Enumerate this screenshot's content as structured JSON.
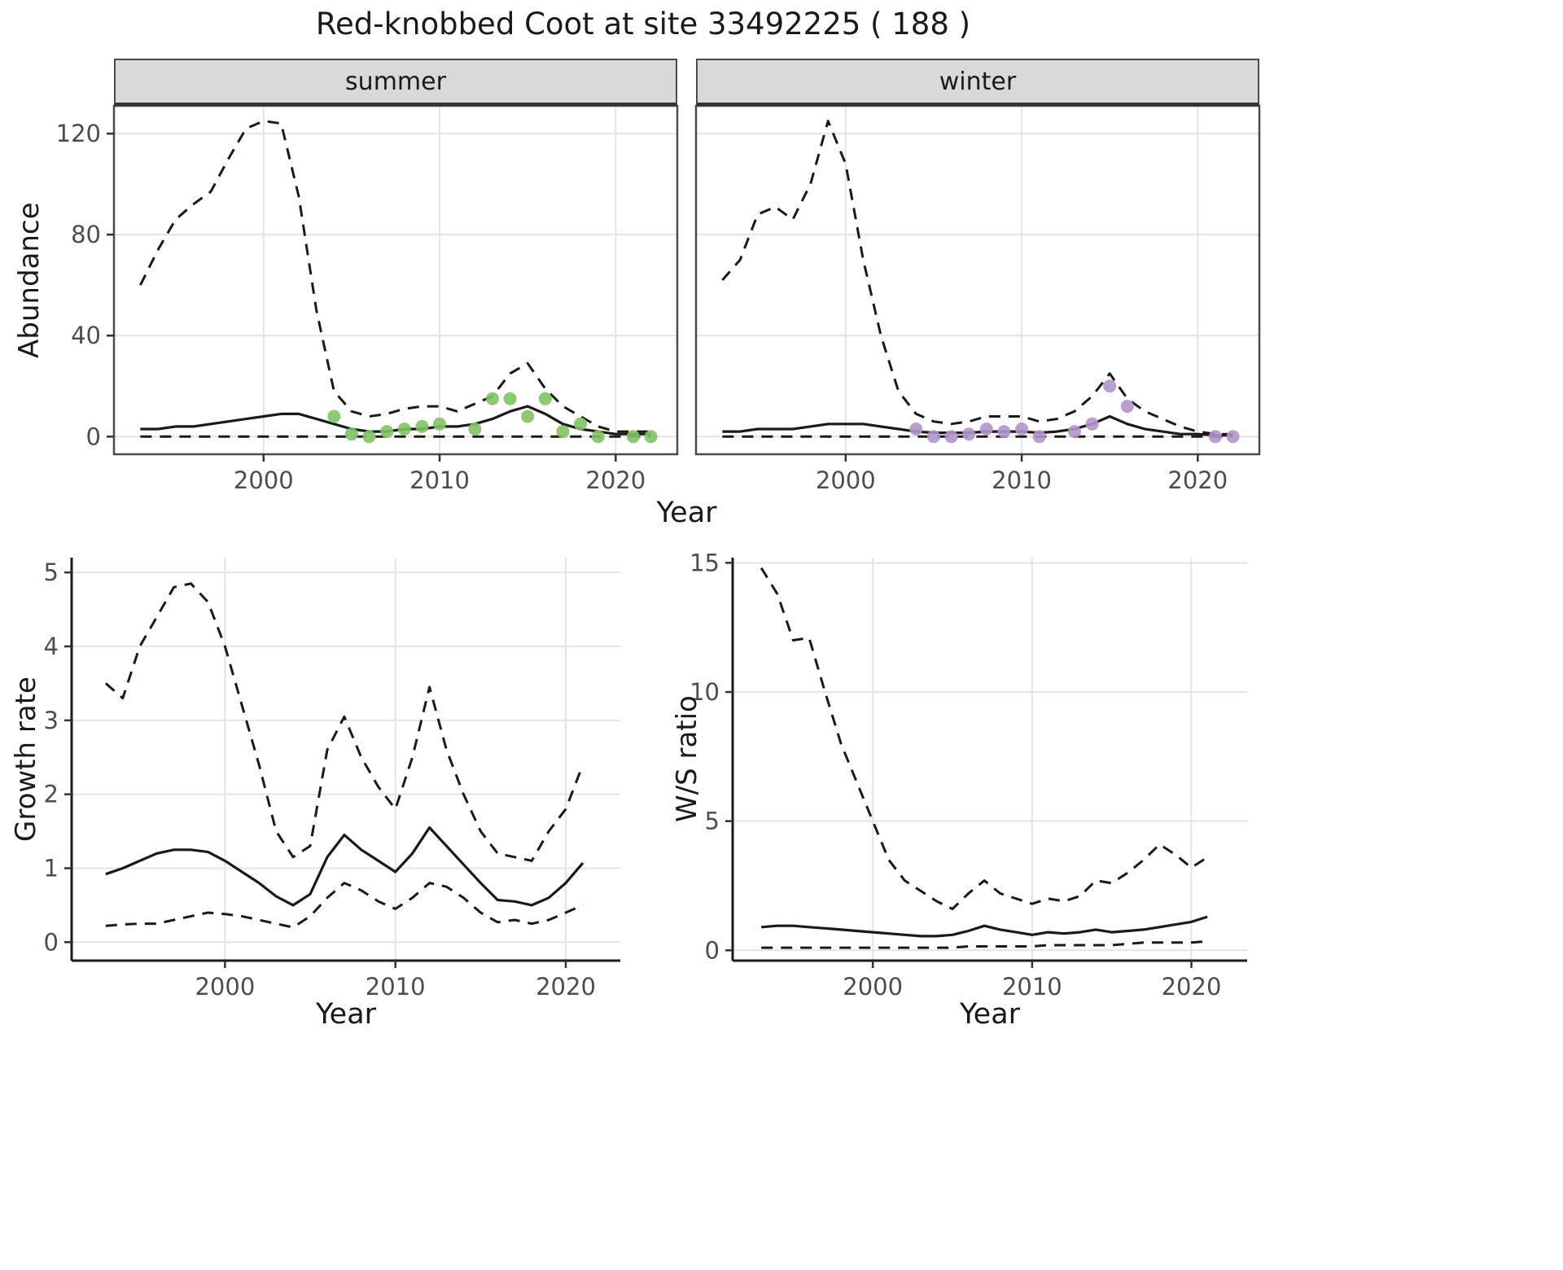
{
  "title": "Red-knobbed Coot at site 33492225 ( 188 )",
  "colors": {
    "line": "#1a1a1a",
    "grid": "#e4e4e4",
    "strip_bg": "#d9d9d9",
    "panel_border": "#4a4a4a",
    "axis_line": "#1a1a1a",
    "tick_mark": "#333333",
    "tick_label": "#4d4d4d",
    "summer_points": "#7dc462",
    "winter_points": "#b195cb"
  },
  "chart_data": [
    {
      "type": "line",
      "title": "summer",
      "xlabel": "Year",
      "ylabel": "Abundance",
      "xlim": [
        1992,
        2023
      ],
      "ylim": [
        0,
        130
      ],
      "xticks": [
        2000,
        2010,
        2020
      ],
      "yticks": [
        0,
        40,
        80,
        120
      ],
      "grid": true,
      "legend": null,
      "x": [
        1993,
        1994,
        1995,
        1996,
        1997,
        1998,
        1999,
        2000,
        2001,
        2002,
        2003,
        2004,
        2005,
        2006,
        2007,
        2008,
        2009,
        2010,
        2011,
        2012,
        2013,
        2014,
        2015,
        2016,
        2017,
        2018,
        2019,
        2020,
        2021,
        2022
      ],
      "series": [
        {
          "name": "upper_ci",
          "style": "dashed",
          "values": [
            60,
            74,
            86,
            92,
            97,
            110,
            122,
            125,
            124,
            95,
            50,
            18,
            10,
            8,
            9,
            11,
            12,
            12,
            10,
            13,
            16,
            25,
            29,
            19,
            12,
            8,
            4,
            2,
            2,
            2
          ]
        },
        {
          "name": "mean",
          "style": "solid",
          "values": [
            3,
            3,
            4,
            4,
            5,
            6,
            7,
            8,
            9,
            9,
            7,
            5,
            3,
            2,
            2,
            3,
            3,
            4,
            4,
            5,
            7,
            10,
            12,
            9,
            5,
            3,
            2,
            1,
            1,
            1
          ]
        },
        {
          "name": "lower_ci",
          "style": "dashed",
          "values": [
            0,
            0,
            0,
            0,
            0,
            0,
            0,
            0,
            0,
            0,
            0,
            0,
            0,
            0,
            0,
            0,
            0,
            0,
            0,
            0,
            0,
            0,
            0,
            0,
            0,
            0,
            0,
            0,
            0,
            0
          ]
        }
      ],
      "points": {
        "name": "observed_counts",
        "color": "#7dc462",
        "x": [
          2004,
          2005,
          2006,
          2007,
          2008,
          2009,
          2010,
          2012,
          2013,
          2014,
          2015,
          2016,
          2017,
          2018,
          2019,
          2021,
          2022
        ],
        "y": [
          8,
          1,
          0,
          2,
          3,
          4,
          5,
          3,
          15,
          15,
          8,
          15,
          2,
          5,
          0,
          0,
          0
        ]
      }
    },
    {
      "type": "line",
      "title": "winter",
      "xlabel": "Year",
      "ylabel": "Abundance",
      "xlim": [
        1992,
        2023
      ],
      "ylim": [
        0,
        130
      ],
      "xticks": [
        2000,
        2010,
        2020
      ],
      "yticks": [
        0,
        40,
        80,
        120
      ],
      "grid": true,
      "legend": null,
      "x": [
        1993,
        1994,
        1995,
        1996,
        1997,
        1998,
        1999,
        2000,
        2001,
        2002,
        2003,
        2004,
        2005,
        2006,
        2007,
        2008,
        2009,
        2010,
        2011,
        2012,
        2013,
        2014,
        2015,
        2016,
        2017,
        2018,
        2019,
        2020,
        2021,
        2022
      ],
      "series": [
        {
          "name": "upper_ci",
          "style": "dashed",
          "values": [
            62,
            70,
            88,
            91,
            86,
            100,
            125,
            108,
            70,
            40,
            18,
            9,
            6,
            5,
            6,
            8,
            8,
            8,
            6,
            7,
            10,
            16,
            25,
            15,
            10,
            7,
            4,
            2,
            1,
            1
          ]
        },
        {
          "name": "mean",
          "style": "solid",
          "values": [
            2,
            2,
            3,
            3,
            3,
            4,
            5,
            5,
            5,
            4,
            3,
            2,
            1.5,
            1.5,
            1.5,
            2,
            2,
            2,
            1.5,
            2,
            3,
            5,
            8,
            5,
            3,
            2,
            1,
            1,
            0.5,
            0.5
          ]
        },
        {
          "name": "lower_ci",
          "style": "dashed",
          "values": [
            0,
            0,
            0,
            0,
            0,
            0,
            0,
            0,
            0,
            0,
            0,
            0,
            0,
            0,
            0,
            0,
            0,
            0,
            0,
            0,
            0,
            0,
            0,
            0,
            0,
            0,
            0,
            0,
            0,
            0
          ]
        }
      ],
      "points": {
        "name": "observed_counts",
        "color": "#b195cb",
        "x": [
          2004,
          2005,
          2006,
          2007,
          2008,
          2009,
          2010,
          2011,
          2013,
          2014,
          2015,
          2016,
          2021,
          2022
        ],
        "y": [
          3,
          0,
          0,
          1,
          3,
          2,
          3,
          0,
          2,
          5,
          20,
          12,
          0,
          0
        ]
      }
    },
    {
      "type": "line",
      "title": "",
      "xlabel": "Year",
      "ylabel": "Growth rate",
      "xlim": [
        1992,
        2022
      ],
      "ylim": [
        0,
        5
      ],
      "xticks": [
        2000,
        2010,
        2020
      ],
      "yticks": [
        0,
        1,
        2,
        3,
        4,
        5
      ],
      "grid": true,
      "legend": null,
      "x": [
        1993,
        1994,
        1995,
        1996,
        1997,
        1998,
        1999,
        2000,
        2001,
        2002,
        2003,
        2004,
        2005,
        2006,
        2007,
        2008,
        2009,
        2010,
        2011,
        2012,
        2013,
        2014,
        2015,
        2016,
        2017,
        2018,
        2019,
        2020,
        2021
      ],
      "series": [
        {
          "name": "upper_ci",
          "style": "dashed",
          "values": [
            3.5,
            3.3,
            4.0,
            4.4,
            4.8,
            4.85,
            4.6,
            4.0,
            3.2,
            2.4,
            1.5,
            1.15,
            1.3,
            2.6,
            3.05,
            2.5,
            2.1,
            1.8,
            2.5,
            3.45,
            2.6,
            2.0,
            1.5,
            1.2,
            1.15,
            1.1,
            1.5,
            1.8,
            2.4
          ]
        },
        {
          "name": "mean",
          "style": "solid",
          "values": [
            0.92,
            1.0,
            1.1,
            1.2,
            1.25,
            1.25,
            1.22,
            1.1,
            0.95,
            0.8,
            0.62,
            0.5,
            0.65,
            1.15,
            1.45,
            1.25,
            1.1,
            0.95,
            1.2,
            1.55,
            1.3,
            1.05,
            0.8,
            0.57,
            0.55,
            0.5,
            0.6,
            0.8,
            1.07
          ]
        },
        {
          "name": "lower_ci",
          "style": "dashed",
          "values": [
            0.22,
            0.24,
            0.25,
            0.25,
            0.3,
            0.35,
            0.4,
            0.38,
            0.35,
            0.3,
            0.25,
            0.2,
            0.35,
            0.6,
            0.8,
            0.7,
            0.55,
            0.45,
            0.6,
            0.8,
            0.75,
            0.6,
            0.4,
            0.27,
            0.3,
            0.25,
            0.3,
            0.4,
            0.5
          ]
        }
      ]
    },
    {
      "type": "line",
      "title": "",
      "xlabel": "Year",
      "ylabel": "W/S ratio",
      "xlim": [
        1992,
        2022
      ],
      "ylim": [
        0,
        15
      ],
      "xticks": [
        2000,
        2010,
        2020
      ],
      "yticks": [
        0,
        5,
        10,
        15
      ],
      "grid": true,
      "legend": null,
      "x": [
        1993,
        1994,
        1995,
        1996,
        1997,
        1998,
        1999,
        2000,
        2001,
        2002,
        2003,
        2004,
        2005,
        2006,
        2007,
        2008,
        2009,
        2010,
        2011,
        2012,
        2013,
        2014,
        2015,
        2016,
        2017,
        2018,
        2019,
        2020,
        2021
      ],
      "series": [
        {
          "name": "upper_ci",
          "style": "dashed",
          "values": [
            14.8,
            13.8,
            12.0,
            12.1,
            10.0,
            8.0,
            6.5,
            5.0,
            3.5,
            2.7,
            2.3,
            1.9,
            1.6,
            2.2,
            2.7,
            2.2,
            2.0,
            1.8,
            2.0,
            1.9,
            2.1,
            2.7,
            2.6,
            3.0,
            3.5,
            4.1,
            3.7,
            3.2,
            3.6
          ]
        },
        {
          "name": "mean",
          "style": "solid",
          "values": [
            0.9,
            0.95,
            0.95,
            0.9,
            0.85,
            0.8,
            0.75,
            0.7,
            0.65,
            0.6,
            0.55,
            0.55,
            0.6,
            0.75,
            0.95,
            0.8,
            0.7,
            0.6,
            0.7,
            0.65,
            0.7,
            0.8,
            0.7,
            0.75,
            0.8,
            0.9,
            1.0,
            1.1,
            1.3
          ]
        },
        {
          "name": "lower_ci",
          "style": "dashed",
          "values": [
            0.1,
            0.1,
            0.1,
            0.1,
            0.1,
            0.1,
            0.1,
            0.1,
            0.1,
            0.1,
            0.1,
            0.1,
            0.1,
            0.15,
            0.15,
            0.15,
            0.15,
            0.15,
            0.2,
            0.2,
            0.2,
            0.2,
            0.2,
            0.25,
            0.3,
            0.3,
            0.3,
            0.3,
            0.35
          ]
        }
      ]
    }
  ]
}
